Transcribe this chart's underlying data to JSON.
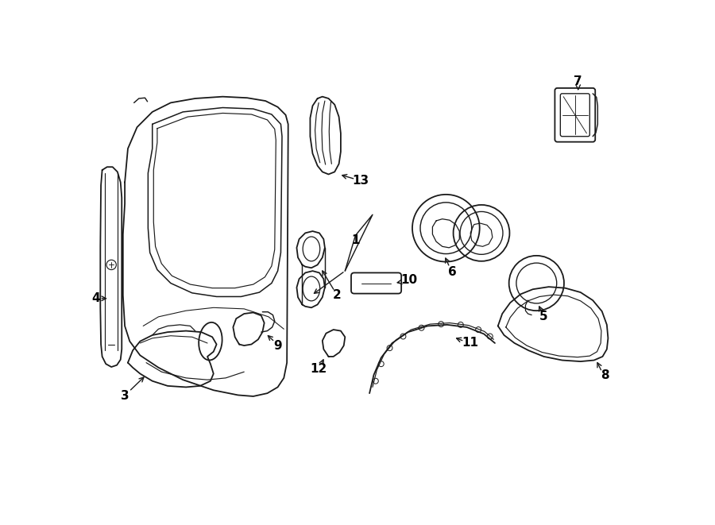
{
  "bg_color": "#ffffff",
  "line_color": "#1a1a1a",
  "line_width": 1.3,
  "label_fontsize": 11,
  "label_color": "#000000",
  "figsize": [
    9.0,
    6.61
  ],
  "dpi": 100
}
